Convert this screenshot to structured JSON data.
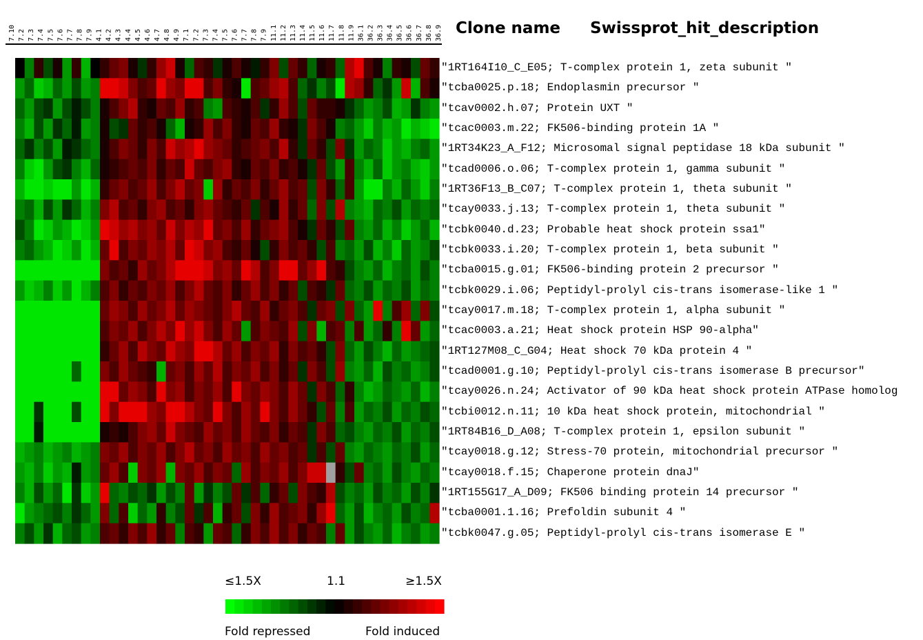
{
  "chart_data": {
    "type": "heatmap",
    "title": "",
    "headers": {
      "clone_name": "Clone name",
      "description": "Swissprot_hit_description"
    },
    "columns": [
      "7.10",
      "7.2",
      "7.3",
      "7.4",
      "7.5",
      "7.6",
      "7.7",
      "7.8",
      "7.9",
      "4.1",
      "4.2",
      "4.3",
      "4.4",
      "4.5",
      "4.6",
      "4.7",
      "4.8",
      "4.9",
      "7.1",
      "7.2",
      "7.3",
      "7.4",
      "7.5",
      "7.6",
      "7.7",
      "7.8",
      "7.9",
      "11.1",
      "11.2",
      "11.3",
      "11.4",
      "11.5",
      "11.6",
      "11.7",
      "11.8",
      "11.9",
      "36.1",
      "36.2",
      "36.3",
      "36.4",
      "36.5",
      "36.6",
      "36.7",
      "36.8",
      "36.9"
    ],
    "rows": [
      "\"1RT164I10_C_E05; T-complex protein 1, zeta subunit \"",
      "\"tcba0025.p.18; Endoplasmin precursor \"",
      "\"tcav0002.h.07; Protein UXT \"",
      "\"tcac0003.m.22; FK506-binding protein 1A \"",
      "\"1RT34K23_A_F12; Microsomal signal peptidase 18 kDa subunit \"",
      "\"tcad0006.o.06; T-complex protein 1, gamma subunit \"",
      "\"1RT36F13_B_C07; T-complex protein 1, theta subunit \"",
      "\"tcay0033.j.13; T-complex protein 1, theta subunit \"",
      "\"tcbk0040.d.23; Probable heat shock protein ssa1\"",
      "\"tcbk0033.i.20; T-complex protein 1, beta subunit \"",
      "\"tcba0015.g.01; FK506-binding protein 2 precursor \"",
      "\"tcbk0029.i.06; Peptidyl-prolyl cis-trans isomerase-like 1 \"",
      "\"tcay0017.m.18; T-complex protein 1, alpha subunit \"",
      "\"tcac0003.a.21; Heat shock protein HSP 90-alpha\"",
      "\"1RT127M08_C_G04; Heat shock 70 kDa protein 4 \"",
      "\"tcad0001.g.10; Peptidyl-prolyl cis-trans isomerase B precursor\"",
      "\"tcay0026.n.24; Activator of 90 kDa heat shock protein ATPase homolog",
      "\"tcbi0012.n.11; 10 kDa heat shock protein, mitochondrial \"",
      "\"1RT84B16_D_A08; T-complex protein 1, epsilon subunit \"",
      "\"tcay0018.g.12; Stress-70 protein, mitochondrial precursor \"",
      "\"tcay0018.f.15; Chaperone protein dnaJ\"",
      "\"1RT155G17_A_D09; FK506 binding protein 14 precursor \"",
      "\"tcba0001.1.16; Prefoldin subunit 4 \"",
      "\"tcbk0047.g.05; Peptidyl-prolyl cis-trans isomerase E \""
    ],
    "color_scale": {
      "low_color": "#00ff00",
      "mid_color": "#000000",
      "high_color": "#ff0000",
      "missing_color": "#a0a0a0"
    },
    "legend": {
      "low_label": "≤1.5X",
      "mid_label": "1.1",
      "high_label": "≥1.5X",
      "left_caption": "Fold repressed",
      "right_caption": "Fold induced"
    },
    "values": [
      [
        0.0,
        -0.5,
        0.2,
        -0.3,
        0.1,
        -0.6,
        0.2,
        -0.7,
        0.0,
        0.2,
        0.4,
        0.5,
        0.1,
        -0.2,
        0.2,
        0.6,
        0.8,
        0.1,
        -0.4,
        0.3,
        0.2,
        -0.2,
        0.1,
        0.3,
        0.1,
        -0.1,
        0.2,
        0.5,
        -0.3,
        0.4,
        0.2,
        -0.4,
        0.1,
        0.2,
        -0.4,
        0.7,
        0.9,
        0.3,
        0.1,
        -0.5,
        0.2,
        0.1,
        -0.3,
        0.4,
        0.2
      ],
      [
        -0.6,
        -0.4,
        -0.8,
        -0.7,
        -0.4,
        -0.6,
        -0.3,
        -0.6,
        -0.5,
        0.9,
        0.9,
        0.8,
        0.5,
        0.3,
        0.4,
        0.9,
        0.6,
        0.5,
        0.9,
        0.9,
        0.3,
        0.5,
        0.2,
        0.1,
        -0.9,
        0.3,
        0.4,
        0.6,
        0.7,
        0.3,
        -0.4,
        -0.2,
        -0.5,
        -0.3,
        -0.9,
        0.7,
        0.6,
        0.2,
        -0.4,
        -0.2,
        -0.6,
        0.8,
        -0.7,
        0.3,
        0.1
      ],
      [
        -0.4,
        -0.6,
        -0.3,
        -0.2,
        -0.6,
        -0.3,
        -0.1,
        -0.3,
        -0.5,
        0.1,
        0.3,
        0.5,
        0.7,
        0.2,
        0.1,
        0.4,
        0.3,
        0.6,
        0.2,
        0.3,
        -0.5,
        -0.6,
        0.3,
        0.2,
        0.1,
        0.3,
        -0.2,
        0.2,
        0.6,
        0.3,
        -0.3,
        0.4,
        0.2,
        0.2,
        0.1,
        -0.2,
        -0.4,
        -0.6,
        -0.5,
        -0.3,
        -0.7,
        -0.6,
        -0.2,
        -0.5,
        -0.6
      ],
      [
        -0.5,
        -0.7,
        -0.3,
        -0.6,
        -0.2,
        -0.4,
        -0.1,
        -0.6,
        -0.5,
        0.1,
        -0.3,
        -0.2,
        0.4,
        0.2,
        0.3,
        0.1,
        -0.4,
        -0.7,
        0.1,
        0.2,
        0.6,
        0.3,
        0.5,
        0.2,
        0.1,
        0.4,
        0.3,
        0.6,
        0.2,
        0.1,
        -0.2,
        0.5,
        0.3,
        0.1,
        -0.5,
        -0.4,
        -0.6,
        -0.8,
        -0.5,
        -0.7,
        -0.6,
        -0.9,
        -0.7,
        -0.8,
        -0.9
      ],
      [
        -0.4,
        -0.2,
        -0.5,
        -0.3,
        -0.6,
        -0.1,
        -0.2,
        -0.4,
        -0.5,
        0.1,
        0.3,
        0.5,
        0.4,
        0.2,
        0.5,
        0.3,
        0.8,
        0.6,
        0.7,
        0.9,
        0.6,
        0.5,
        0.4,
        0.2,
        0.3,
        0.4,
        0.5,
        0.3,
        0.7,
        0.2,
        -0.2,
        0.4,
        0.2,
        -0.3,
        0.5,
        -0.2,
        -0.6,
        -0.4,
        -0.5,
        -0.8,
        -0.6,
        -0.7,
        -0.5,
        -0.4,
        -0.6
      ],
      [
        -0.5,
        -0.8,
        -0.9,
        -0.6,
        -0.3,
        -0.2,
        -0.5,
        -0.7,
        -0.4,
        0.1,
        0.2,
        0.3,
        0.4,
        0.3,
        0.5,
        0.2,
        0.4,
        0.3,
        0.8,
        0.4,
        0.3,
        0.5,
        0.6,
        0.2,
        0.1,
        0.4,
        0.3,
        0.5,
        0.2,
        0.3,
        0.1,
        -0.2,
        0.4,
        -0.3,
        -0.6,
        0.3,
        -0.5,
        -0.7,
        -0.4,
        -0.8,
        -0.6,
        -0.5,
        -0.7,
        -0.8,
        -0.6
      ],
      [
        -0.7,
        -0.9,
        -0.9,
        -0.8,
        -0.9,
        -0.9,
        -0.6,
        -0.9,
        -0.7,
        0.2,
        0.4,
        0.5,
        0.3,
        0.4,
        0.6,
        0.3,
        0.5,
        0.7,
        0.4,
        0.5,
        -0.8,
        0.6,
        0.2,
        0.4,
        0.3,
        0.5,
        0.2,
        0.4,
        0.6,
        0.3,
        0.4,
        -0.3,
        0.5,
        0.2,
        -0.4,
        0.3,
        -0.6,
        -0.9,
        -0.9,
        -0.5,
        -0.7,
        -0.4,
        -0.6,
        -0.8,
        -0.5
      ],
      [
        -0.5,
        -0.4,
        -0.7,
        -0.3,
        -0.6,
        -0.2,
        -0.4,
        -0.7,
        -0.5,
        0.5,
        0.7,
        0.3,
        0.4,
        0.2,
        0.5,
        0.6,
        0.3,
        0.4,
        0.2,
        0.5,
        0.6,
        0.4,
        0.3,
        0.2,
        0.4,
        -0.2,
        0.3,
        0.1,
        0.6,
        0.2,
        0.4,
        -0.4,
        0.5,
        -0.3,
        0.7,
        -0.5,
        -0.6,
        -0.7,
        -0.4,
        -0.5,
        -0.3,
        -0.6,
        -0.4,
        -0.5,
        -0.4
      ],
      [
        -0.3,
        -0.5,
        -0.9,
        -0.8,
        -0.6,
        -0.7,
        -0.9,
        -0.8,
        -0.6,
        0.9,
        0.8,
        0.6,
        0.7,
        0.5,
        0.6,
        0.4,
        0.8,
        0.5,
        0.7,
        0.6,
        0.9,
        0.4,
        0.5,
        0.3,
        0.6,
        0.2,
        0.4,
        0.5,
        0.6,
        0.3,
        0.1,
        -0.2,
        0.4,
        0.2,
        -0.3,
        0.4,
        -0.5,
        -0.6,
        -0.4,
        -0.7,
        -0.5,
        -0.8,
        -0.6,
        -0.4,
        -0.7
      ],
      [
        -0.5,
        -0.4,
        -0.6,
        -0.7,
        -0.9,
        -0.8,
        -0.6,
        -0.9,
        -0.7,
        0.4,
        0.9,
        0.3,
        0.5,
        0.4,
        0.6,
        0.5,
        0.7,
        0.4,
        0.9,
        0.8,
        0.5,
        0.6,
        0.3,
        0.2,
        0.4,
        0.1,
        -0.3,
        0.2,
        0.5,
        0.3,
        0.4,
        0.2,
        -0.3,
        0.3,
        -0.5,
        -0.4,
        -0.6,
        -0.3,
        -0.7,
        -0.5,
        -0.8,
        -0.4,
        -0.6,
        -0.5,
        -0.3
      ],
      [
        -0.9,
        -0.9,
        -0.9,
        -0.9,
        -0.9,
        -0.9,
        -0.9,
        -0.9,
        -0.9,
        0.5,
        0.3,
        0.4,
        0.2,
        0.6,
        0.4,
        0.5,
        0.7,
        0.9,
        0.9,
        0.9,
        0.8,
        0.5,
        0.6,
        0.4,
        0.9,
        0.7,
        0.3,
        0.5,
        0.9,
        0.9,
        0.4,
        0.6,
        0.9,
        0.3,
        0.2,
        -0.3,
        -0.5,
        -0.6,
        -0.4,
        -0.7,
        -0.5,
        -0.4,
        -0.6,
        -0.3,
        -0.5
      ],
      [
        -0.6,
        -0.8,
        -0.7,
        -0.5,
        -0.8,
        -0.6,
        -0.9,
        -0.7,
        -0.5,
        0.3,
        0.5,
        0.2,
        0.4,
        0.3,
        0.5,
        0.4,
        0.6,
        0.3,
        0.5,
        0.7,
        0.4,
        0.3,
        0.5,
        0.2,
        0.4,
        0.6,
        0.3,
        0.5,
        0.2,
        0.4,
        -0.3,
        0.3,
        0.2,
        -0.2,
        0.4,
        -0.4,
        -0.5,
        -0.3,
        -0.6,
        -0.4,
        -0.5,
        -0.3,
        -0.6,
        -0.4,
        -0.5
      ],
      [
        -0.9,
        -0.9,
        -0.9,
        -0.9,
        -0.9,
        -0.9,
        -0.9,
        -0.9,
        -0.9,
        0.4,
        0.6,
        0.5,
        0.3,
        0.6,
        0.4,
        0.5,
        0.7,
        0.4,
        0.6,
        0.5,
        0.4,
        0.3,
        0.5,
        0.7,
        0.4,
        0.3,
        0.6,
        0.2,
        0.4,
        0.5,
        0.3,
        -0.2,
        0.4,
        0.5,
        -0.3,
        0.5,
        -0.4,
        -0.6,
        0.9,
        -0.5,
        0.3,
        0.6,
        -0.4,
        0.5,
        -0.3
      ],
      [
        -0.9,
        -0.9,
        -0.9,
        -0.9,
        -0.9,
        -0.9,
        -0.9,
        -0.9,
        -0.9,
        0.3,
        0.5,
        0.4,
        0.6,
        0.3,
        0.5,
        0.7,
        0.5,
        0.9,
        0.6,
        0.8,
        0.5,
        0.3,
        0.6,
        0.4,
        -0.6,
        0.3,
        0.5,
        0.4,
        0.3,
        0.6,
        -0.3,
        0.5,
        -0.7,
        0.3,
        0.4,
        -0.5,
        0.3,
        -0.6,
        -0.4,
        0.2,
        -0.5,
        0.9,
        0.4,
        -0.6,
        -0.4
      ],
      [
        -0.9,
        -0.9,
        -0.9,
        -0.9,
        -0.9,
        -0.9,
        -0.9,
        -0.9,
        -0.9,
        0.2,
        0.4,
        0.6,
        0.3,
        0.7,
        0.5,
        0.4,
        0.8,
        0.6,
        0.5,
        0.9,
        0.9,
        0.7,
        0.4,
        0.6,
        0.3,
        0.5,
        0.4,
        0.6,
        0.2,
        0.5,
        0.3,
        0.4,
        0.2,
        -0.3,
        0.5,
        -0.4,
        -0.6,
        -0.3,
        -0.5,
        -0.7,
        -0.4,
        -0.6,
        -0.5,
        -0.4,
        -0.3
      ],
      [
        -0.9,
        -0.9,
        -0.9,
        -0.9,
        -0.9,
        -0.9,
        -0.4,
        -0.9,
        -0.9,
        0.5,
        0.3,
        0.6,
        0.4,
        0.3,
        0.2,
        -0.7,
        0.4,
        0.5,
        0.3,
        0.6,
        0.4,
        0.7,
        0.3,
        0.5,
        0.4,
        0.6,
        0.3,
        0.5,
        0.2,
        0.4,
        -0.2,
        0.5,
        0.3,
        -0.3,
        0.6,
        -0.5,
        -0.6,
        -0.4,
        -0.7,
        -0.3,
        -0.5,
        -0.4,
        -0.6,
        -0.5,
        -0.3
      ],
      [
        -0.9,
        -0.9,
        -0.9,
        -0.9,
        -0.9,
        -0.9,
        -0.9,
        -0.9,
        -0.9,
        0.9,
        0.9,
        0.4,
        0.6,
        0.5,
        0.3,
        0.9,
        0.5,
        0.6,
        0.3,
        0.5,
        0.4,
        0.6,
        0.3,
        0.9,
        0.5,
        0.4,
        0.6,
        0.5,
        0.3,
        0.6,
        0.4,
        -0.2,
        0.5,
        0.3,
        -0.4,
        0.2,
        -0.5,
        -0.7,
        -0.6,
        -0.4,
        -0.5,
        -0.6,
        -0.4,
        -0.7,
        -0.5
      ],
      [
        -0.9,
        -0.9,
        -0.2,
        -0.9,
        -0.9,
        -0.9,
        -0.3,
        -0.9,
        -0.9,
        0.9,
        0.5,
        0.9,
        0.9,
        0.9,
        0.6,
        0.5,
        0.9,
        0.9,
        0.7,
        0.5,
        0.4,
        0.9,
        0.5,
        0.3,
        0.6,
        0.4,
        0.9,
        0.5,
        0.3,
        0.6,
        0.4,
        0.2,
        -0.3,
        0.4,
        -0.5,
        0.3,
        -0.6,
        -0.4,
        -0.5,
        -0.3,
        -0.6,
        -0.4,
        -0.5,
        -0.3,
        -0.4
      ],
      [
        -0.9,
        -0.9,
        -0.1,
        -0.9,
        -0.9,
        -0.9,
        -0.9,
        -0.9,
        -0.9,
        0.1,
        0.2,
        0.1,
        0.3,
        0.5,
        0.6,
        0.4,
        0.8,
        0.5,
        0.4,
        0.3,
        0.6,
        0.4,
        0.5,
        0.3,
        0.6,
        0.4,
        0.3,
        0.5,
        0.2,
        0.4,
        0.3,
        -0.2,
        0.5,
        0.3,
        -0.4,
        -0.3,
        -0.5,
        -0.6,
        -0.4,
        -0.5,
        -0.3,
        -0.6,
        -0.4,
        -0.5,
        -0.3
      ],
      [
        -0.7,
        -0.6,
        -0.5,
        -0.7,
        -0.6,
        -0.5,
        -0.7,
        -0.6,
        -0.5,
        0.5,
        0.4,
        0.6,
        0.3,
        0.5,
        0.4,
        0.6,
        0.3,
        0.5,
        0.7,
        0.4,
        0.5,
        0.3,
        0.6,
        0.4,
        0.5,
        0.3,
        0.6,
        0.4,
        0.5,
        0.3,
        0.4,
        -0.2,
        0.3,
        -0.3,
        0.4,
        -0.5,
        -0.6,
        -0.4,
        -0.5,
        -0.6,
        -0.4,
        -0.5,
        -0.3,
        -0.6,
        -0.4
      ],
      [
        -0.6,
        -0.7,
        -0.5,
        -0.8,
        -0.6,
        -0.7,
        -0.1,
        -0.6,
        -0.5,
        0.4,
        0.6,
        0.3,
        -0.8,
        0.5,
        0.4,
        0.6,
        -0.7,
        0.5,
        0.4,
        0.6,
        0.3,
        0.5,
        0.4,
        -0.4,
        0.6,
        0.3,
        0.5,
        0.4,
        0.6,
        0.3,
        0.5,
        0.8,
        0.8,
        null,
        0.2,
        -0.3,
        0.4,
        -0.5,
        -0.4,
        -0.6,
        -0.3,
        -0.5,
        -0.6,
        -0.4,
        -0.5
      ],
      [
        -0.5,
        -0.7,
        -0.3,
        -0.6,
        -0.4,
        -0.9,
        -0.2,
        -0.8,
        -0.6,
        0.9,
        -0.4,
        -0.5,
        -0.3,
        -0.4,
        -0.2,
        -0.6,
        -0.3,
        -0.5,
        0.4,
        -0.6,
        -0.2,
        -0.5,
        -0.3,
        0.4,
        -0.2,
        0.3,
        -0.4,
        0.2,
        0.4,
        -0.3,
        0.5,
        0.3,
        0.2,
        0.7,
        -0.3,
        -0.5,
        -0.4,
        -0.6,
        -0.3,
        -0.5,
        -0.4,
        -0.6,
        -0.3,
        -0.5,
        -0.2
      ],
      [
        -0.9,
        -0.6,
        -0.5,
        -0.4,
        -0.3,
        -0.5,
        -0.2,
        -0.4,
        -0.6,
        0.5,
        -0.4,
        0.3,
        -0.8,
        -0.4,
        -0.6,
        0.2,
        -0.5,
        -0.3,
        0.4,
        -0.2,
        0.3,
        -0.7,
        0.2,
        0.4,
        -0.3,
        0.5,
        0.2,
        0.6,
        0.3,
        0.4,
        0.5,
        0.2,
        0.6,
        0.9,
        -0.4,
        -0.6,
        -0.3,
        -0.7,
        -0.5,
        -0.4,
        -0.6,
        -0.3,
        -0.5,
        -0.4,
        0.7
      ],
      [
        -0.5,
        -0.3,
        -0.6,
        -0.2,
        -0.7,
        -0.4,
        -0.3,
        -0.6,
        -0.5,
        0.3,
        0.4,
        0.2,
        0.5,
        0.3,
        0.6,
        0.2,
        0.4,
        -0.5,
        0.3,
        0.2,
        -0.6,
        0.4,
        0.3,
        -0.4,
        0.2,
        0.5,
        0.3,
        0.6,
        0.3,
        0.5,
        0.2,
        0.4,
        0.3,
        -0.5,
        0.4,
        -0.6,
        -0.3,
        -0.5,
        -0.6,
        -0.4,
        -0.7,
        -0.5,
        -0.4,
        -0.6,
        -0.5
      ]
    ]
  }
}
